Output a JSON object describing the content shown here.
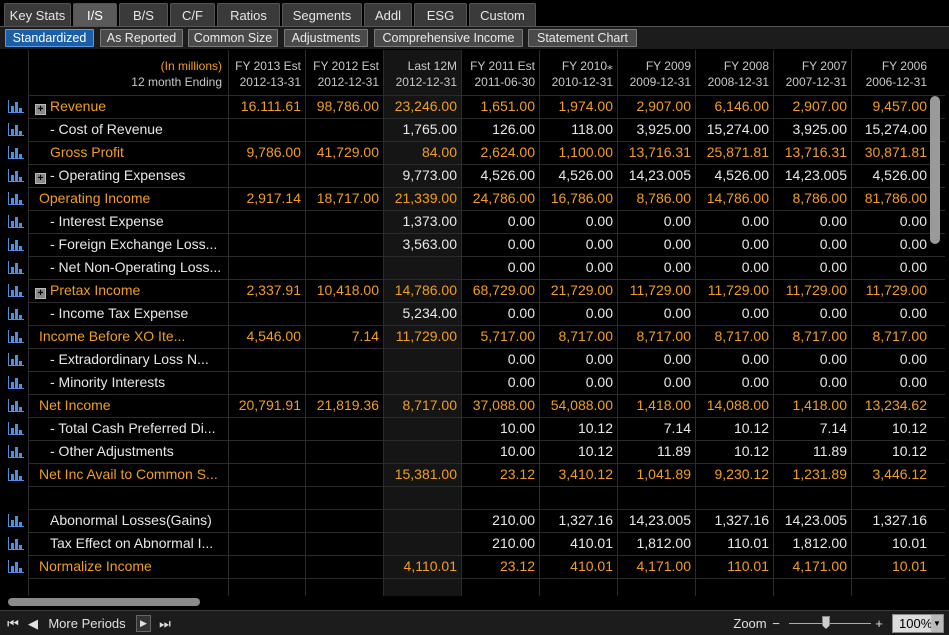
{
  "tabs": [
    "Key Stats",
    "I/S",
    "B/S",
    "C/F",
    "Ratios",
    "Segments",
    "Addl",
    "ESG",
    "Custom"
  ],
  "active_tab": "I/S",
  "subtabs": [
    "Standardized",
    "As Reported",
    "Common Size",
    "Adjustments",
    "Comprehensive Income",
    "Statement Chart"
  ],
  "active_subtab": "Standardized",
  "header": {
    "units": "(In millions)",
    "period_label": "12 month Ending",
    "columns": [
      {
        "l1": "FY 2013 Est",
        "l2": "2012-13-31"
      },
      {
        "l1": "FY 2012 Est",
        "l2": "2012-12-31"
      },
      {
        "l1": "Last 12M",
        "l2": "2012-12-31"
      },
      {
        "l1": "FY 2011 Est",
        "l2": "2011-06-30"
      },
      {
        "l1": "FY 2010⁎",
        "l2": "2010-12-31"
      },
      {
        "l1": "FY 2009",
        "l2": "2009-12-31"
      },
      {
        "l1": "FY 2008",
        "l2": "2008-12-31"
      },
      {
        "l1": "FY 2007",
        "l2": "2007-12-31"
      },
      {
        "l1": "FY 2006",
        "l2": "2006-12-31"
      }
    ]
  },
  "rows": [
    {
      "label": "Revenue",
      "expand": true,
      "indent": 1,
      "color": "orange",
      "icon": true,
      "values": [
        "16.111.61",
        "98,786.00",
        "23,246.00",
        "1,651.00",
        "1,974.00",
        "2,907.00",
        "6,146.00",
        "2,907.00",
        "9,457.00"
      ]
    },
    {
      "label": "- Cost of Revenue",
      "expand": false,
      "indent": 1,
      "color": "white",
      "icon": true,
      "values": [
        "",
        "",
        "1,765.00",
        "126.00",
        "118.00",
        "3,925.00",
        "15,274.00",
        "3,925.00",
        "15,274.00"
      ]
    },
    {
      "label": "Gross Profit",
      "expand": false,
      "indent": 1,
      "color": "orange",
      "icon": true,
      "values": [
        "9,786.00",
        "41,729.00",
        "84.00",
        "2,624.00",
        "1,100.00",
        "13,716.31",
        "25,871.81",
        "13,716.31",
        "30,871.81"
      ]
    },
    {
      "label": "- Operating Expenses",
      "expand": true,
      "indent": 1,
      "color": "white",
      "icon": true,
      "values": [
        "",
        "",
        "9,773.00",
        "4,526.00",
        "4,526.00",
        "14,23.005",
        "4,526.00",
        "14,23.005",
        "4,526.00"
      ]
    },
    {
      "label": "Operating Income",
      "expand": false,
      "indent": 0,
      "color": "orange",
      "icon": true,
      "values": [
        "2,917.14",
        "18,717.00",
        "21,339.00",
        "24,786.00",
        "16,786.00",
        "8,786.00",
        "14,786.00",
        "8,786.00",
        "81,786.00"
      ]
    },
    {
      "label": "- Interest Expense",
      "expand": false,
      "indent": 1,
      "color": "white",
      "icon": true,
      "values": [
        "",
        "",
        "1,373.00",
        "0.00",
        "0.00",
        "0.00",
        "0.00",
        "0.00",
        "0.00"
      ]
    },
    {
      "label": "- Foreign Exchange Loss...",
      "expand": false,
      "indent": 1,
      "color": "white",
      "icon": true,
      "values": [
        "",
        "",
        "3,563.00",
        "0.00",
        "0.00",
        "0.00",
        "0.00",
        "0.00",
        "0.00"
      ]
    },
    {
      "label": "- Net Non-Operating Loss...",
      "expand": false,
      "indent": 1,
      "color": "white",
      "icon": true,
      "values": [
        "",
        "",
        "",
        "0.00",
        "0.00",
        "0.00",
        "0.00",
        "0.00",
        "0.00"
      ]
    },
    {
      "label": "Pretax Income",
      "expand": true,
      "indent": 1,
      "color": "orange",
      "icon": true,
      "values": [
        "2,337.91",
        "10,418.00",
        "14,786.00",
        "68,729.00",
        "21,729.00",
        "11,729.00",
        "11,729.00",
        "11,729.00",
        "11,729.00"
      ]
    },
    {
      "label": "- Income Tax Expense",
      "expand": false,
      "indent": 1,
      "color": "white",
      "icon": true,
      "values": [
        "",
        "",
        "5,234.00",
        "0.00",
        "0.00",
        "0.00",
        "0.00",
        "0.00",
        "0.00"
      ]
    },
    {
      "label": "Income Before XO Ite...",
      "expand": false,
      "indent": 0,
      "color": "orange",
      "icon": true,
      "values": [
        "4,546.00",
        "7.14",
        "11,729.00",
        "5,717.00",
        "8,717.00",
        "8,717.00",
        "8,717.00",
        "8,717.00",
        "8,717.00"
      ]
    },
    {
      "label": "- Extradordinary Loss N...",
      "expand": false,
      "indent": 1,
      "color": "white",
      "icon": true,
      "values": [
        "",
        "",
        "",
        "0.00",
        "0.00",
        "0.00",
        "0.00",
        "0.00",
        "0.00"
      ]
    },
    {
      "label": "- Minority Interests",
      "expand": false,
      "indent": 1,
      "color": "white",
      "icon": true,
      "values": [
        "",
        "",
        "",
        "0.00",
        "0.00",
        "0.00",
        "0.00",
        "0.00",
        "0.00"
      ]
    },
    {
      "label": "Net Income",
      "expand": false,
      "indent": 0,
      "color": "orange",
      "icon": true,
      "values": [
        "20,791.91",
        "21,819.36",
        "8,717.00",
        "37,088.00",
        "54,088.00",
        "1,418.00",
        "14,088.00",
        "1,418.00",
        "13,234.62"
      ]
    },
    {
      "label": "- Total Cash Preferred Di...",
      "expand": false,
      "indent": 1,
      "color": "white",
      "icon": true,
      "values": [
        "",
        "",
        "",
        "10.00",
        "10.12",
        "7.14",
        "10.12",
        "7.14",
        "10.12"
      ]
    },
    {
      "label": "- Other Adjustments",
      "expand": false,
      "indent": 1,
      "color": "white",
      "icon": true,
      "values": [
        "",
        "",
        "",
        "10.00",
        "10.12",
        "11.89",
        "10.12",
        "11.89",
        "10.12"
      ]
    },
    {
      "label": "Net Inc Avail to Common S...",
      "expand": false,
      "indent": 0,
      "color": "orange",
      "icon": true,
      "values": [
        "",
        "",
        "15,381.00",
        "23.12",
        "3,410.12",
        "1,041.89",
        "9,230.12",
        "1,231.89",
        "3,446.12"
      ]
    },
    {
      "label": "",
      "expand": false,
      "indent": 0,
      "color": "white",
      "icon": false,
      "values": [
        "",
        "",
        "",
        "",
        "",
        "",
        "",
        "",
        ""
      ]
    },
    {
      "label": "Abonormal Losses(Gains)",
      "expand": false,
      "indent": 1,
      "color": "white",
      "icon": true,
      "values": [
        "",
        "",
        "",
        "210.00",
        "1,327.16",
        "14,23.005",
        "1,327.16",
        "14,23.005",
        "1,327.16"
      ]
    },
    {
      "label": "Tax Effect on Abnormal I...",
      "expand": false,
      "indent": 1,
      "color": "white",
      "icon": true,
      "values": [
        "",
        "",
        "",
        "210.00",
        "410.01",
        "1,812.00",
        "110.01",
        "1,812.00",
        "10.01"
      ]
    },
    {
      "label": "Normalize Income",
      "expand": false,
      "indent": 0,
      "color": "orange",
      "icon": true,
      "values": [
        "",
        "",
        "4,110.01",
        "23.12",
        "410.01",
        "4,171.00",
        "110.01",
        "4,171.00",
        "10.01"
      ]
    }
  ],
  "bottom": {
    "more_periods": "More Periods",
    "zoom_label": "Zoom",
    "zoom_minus": "−",
    "zoom_plus": "+",
    "zoom_value": "100%"
  },
  "colors": {
    "orange": "#f29e1e",
    "white": "#e8e8e8",
    "active_subtab": "#1b5fa8",
    "icon_blue": "#4f8fe0"
  }
}
